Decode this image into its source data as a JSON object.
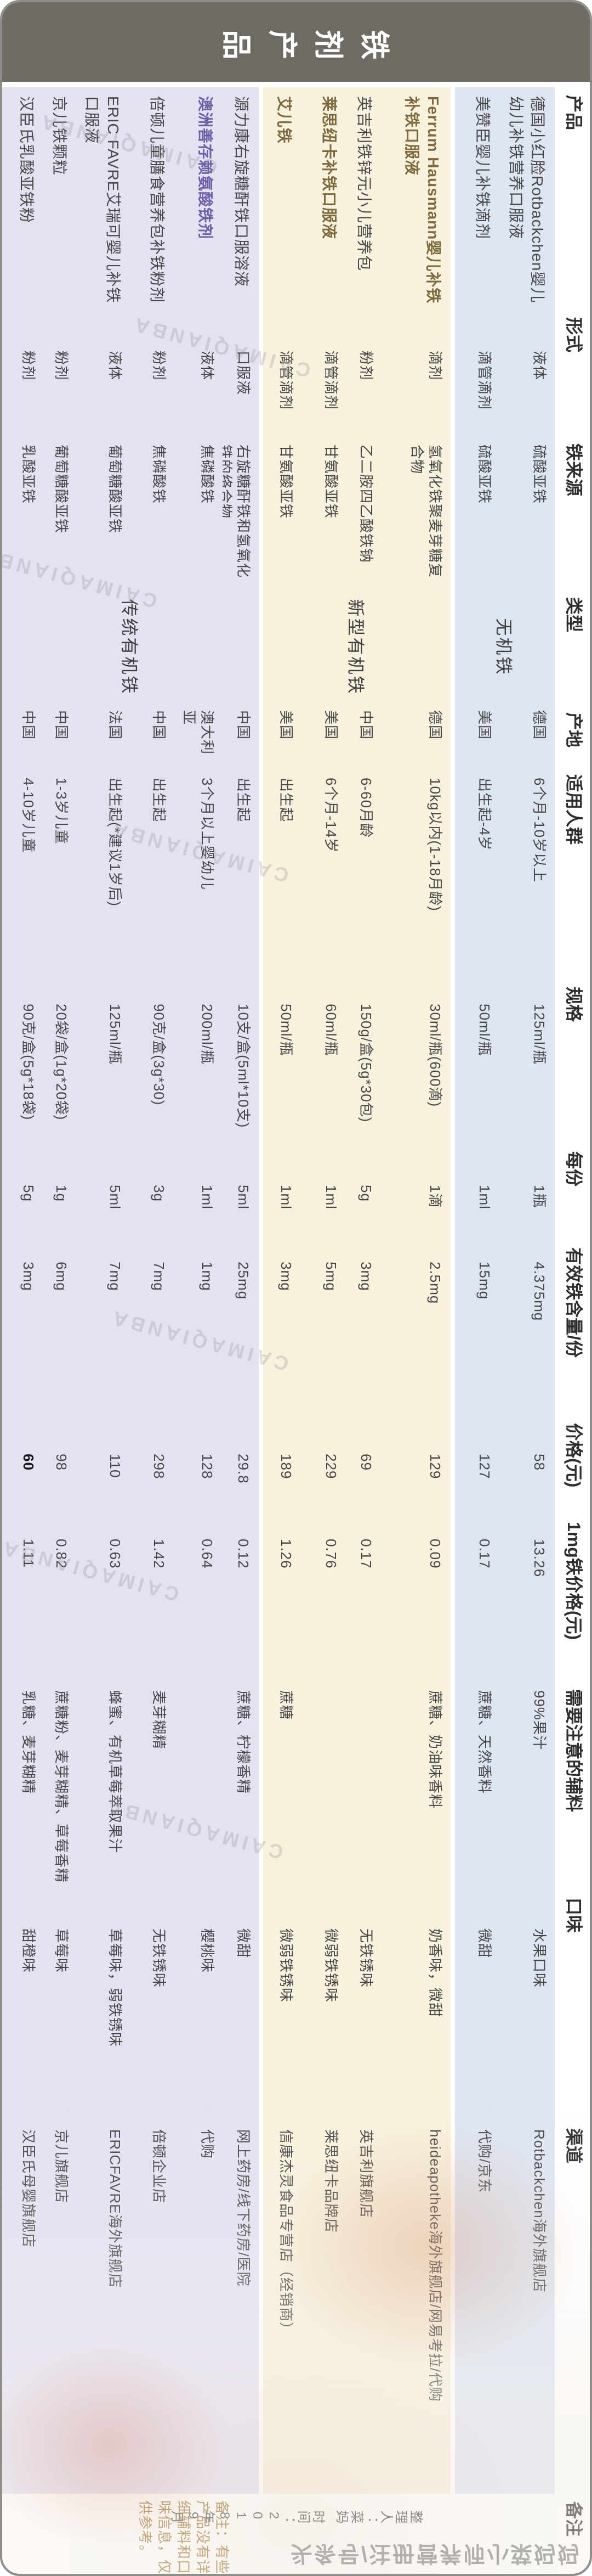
{
  "title": "铁剂产品",
  "watermark_text": "CAIMAQIANBA",
  "byline": "头条号/注册营养师小菜妈妈",
  "headers": {
    "product": "产品",
    "form": "形式",
    "source": "铁来源",
    "type": "类型",
    "origin": "产地",
    "audience": "适用人群",
    "spec": "规格",
    "serving": "每份",
    "iron": "有效铁含量/份",
    "price": "价格(元)",
    "price_per_mg": "1mg铁价格(元)",
    "additives": "需要注意的辅料",
    "flavor": "口味",
    "channel": "渠道",
    "note": "备注"
  },
  "type_groups": [
    {
      "id": "blue",
      "label": "无机铁"
    },
    {
      "id": "cream",
      "label": "新型有机铁"
    },
    {
      "id": "lavender",
      "label": "传统有机铁"
    }
  ],
  "colors": {
    "title_bg": "#6e6a64",
    "blue": "#dde5f2",
    "cream": "#f7f1dd",
    "lavender": "#e4e1f3",
    "accent_brown": "#7d6a3f",
    "accent_purple": "#6f5fa8",
    "note_text": "#9c7c3c"
  },
  "note": {
    "text": "备注：有些产品没有详细辅料和口味信息，仅供参考。",
    "editor": "整理人：菜妈",
    "date": "时间：2018年9月"
  },
  "products": [
    {
      "name": "德国小红脸Rotbackchen婴儿幼儿补铁营养口服液",
      "group": "blue",
      "highlight": null,
      "form": "液体",
      "source": "硫酸亚铁",
      "origin": "德国",
      "audience": "6个月-10岁以上",
      "spec": "125ml/瓶",
      "serving": "1瓶",
      "iron": "4.375mg",
      "price": "58",
      "price_bold": false,
      "price_per_mg": "13.26",
      "additives": "99%果汁",
      "flavor": "水果口味",
      "channel": "Rotbackchen海外旗舰店"
    },
    {
      "name": "美赞臣婴儿补铁滴剂",
      "group": "blue",
      "highlight": null,
      "form": "滴管滴剂",
      "source": "硫酸亚铁",
      "origin": "美国",
      "audience": "出生起-4岁",
      "spec": "50ml/瓶",
      "serving": "1ml",
      "iron": "15mg",
      "price": "127",
      "price_bold": false,
      "price_per_mg": "0.17",
      "additives": "蔗糖、天然香料",
      "flavor": "微甜",
      "channel": "代购/京东"
    },
    {
      "name": "Ferrum Hausmann婴儿补铁补铁口服液",
      "group": "cream",
      "highlight": "brown",
      "form": "滴剂",
      "source": "氢氧化铁聚麦芽糖复合物",
      "origin": "德国",
      "audience": "10kg以内(1-18月龄)",
      "spec": "30ml/瓶(600滴)",
      "serving": "1滴",
      "iron": "2.5mg",
      "price": "129",
      "price_bold": false,
      "price_per_mg": "0.09",
      "additives": "蔗糖、奶油味香料",
      "flavor": "奶香味，微甜",
      "channel": "heideapotheke海外旗舰店/网易考拉/代购"
    },
    {
      "name": "英吉利铁锌元小儿营养包",
      "group": "cream",
      "highlight": null,
      "form": "粉剂",
      "source": "乙二胺四乙酸铁钠",
      "origin": "中国",
      "audience": "6-60月龄",
      "spec": "150g/盒(5g*30包)",
      "serving": "5g",
      "iron": "3mg",
      "price": "69",
      "price_bold": false,
      "price_per_mg": "0.17",
      "additives": "",
      "flavor": "无铁锈味",
      "channel": "英吉利旗舰店"
    },
    {
      "name": "莱思纽卡补铁口服液",
      "group": "cream",
      "highlight": "brown",
      "form": "滴管滴剂",
      "source": "甘氨酸亚铁",
      "origin": "美国",
      "audience": "6个月-14岁",
      "spec": "60ml/瓶",
      "serving": "1ml",
      "iron": "5mg",
      "price": "229",
      "price_bold": false,
      "price_per_mg": "0.76",
      "additives": "",
      "flavor": "微弱铁锈味",
      "channel": "莱思纽卡品牌店"
    },
    {
      "name": "艾儿铁",
      "group": "cream",
      "highlight": "brown",
      "form": "滴管滴剂",
      "source": "甘氨酸亚铁",
      "origin": "美国",
      "audience": "出生起",
      "spec": "50ml/瓶",
      "serving": "1ml",
      "iron": "3mg",
      "price": "189",
      "price_bold": false,
      "price_per_mg": "1.26",
      "additives": "蔗糖",
      "flavor": "微弱铁锈味",
      "channel": "信康杰灵食品专营店（经销商）"
    },
    {
      "name": "源力康右旋糖酐铁口服溶液",
      "group": "lavender",
      "highlight": null,
      "form": "口服液",
      "source": "右旋糖酐铁和氢氧化铁的络合物",
      "origin": "中国",
      "audience": "出生起",
      "spec": "10支/盒(5ml*10支)",
      "serving": "5ml",
      "iron": "25mg",
      "price": "29.8",
      "price_bold": false,
      "price_per_mg": "0.12",
      "additives": "蔗糖、柠檬香精",
      "flavor": "微甜",
      "channel": "网上药房/线下药房/医院"
    },
    {
      "name": "澳洲善存赖氨酸铁剂",
      "group": "lavender",
      "highlight": "purple",
      "form": "液体",
      "source": "焦磷酸铁",
      "origin": "澳大利亚",
      "audience": "3个月以上婴幼儿",
      "spec": "200ml/瓶",
      "serving": "1ml",
      "iron": "1mg",
      "price": "128",
      "price_bold": false,
      "price_per_mg": "0.64",
      "additives": "",
      "flavor": "樱桃味",
      "channel": "代购"
    },
    {
      "name": "倍顿儿童膳食营养包补铁粉剂",
      "group": "lavender",
      "highlight": null,
      "form": "粉剂",
      "source": "焦磷酸铁",
      "origin": "中国",
      "audience": "出生起",
      "spec": "90克/盒(3g*30)",
      "serving": "3g",
      "iron": "7mg",
      "price": "298",
      "price_bold": false,
      "price_per_mg": "1.42",
      "additives": "麦芽糊精",
      "flavor": "无铁锈味",
      "channel": "倍顿企业店"
    },
    {
      "name": "ERIC FAVRE艾瑞可婴儿补铁口服液",
      "group": "lavender",
      "highlight": null,
      "form": "液体",
      "source": "葡萄糖酸亚铁",
      "origin": "法国",
      "audience": "出生起(*建议1岁后)",
      "spec": "125ml/瓶",
      "serving": "5ml",
      "iron": "7mg",
      "price": "110",
      "price_bold": false,
      "price_per_mg": "0.63",
      "additives": "蜂蜜、有机草莓萃取果汁",
      "flavor": "草莓味，弱铁锈味",
      "channel": "ERICFAVRE海外旗舰店"
    },
    {
      "name": "京儿铁颗粒",
      "group": "lavender",
      "highlight": null,
      "form": "粉剂",
      "source": "葡萄糖酸亚铁",
      "origin": "中国",
      "audience": "1-3岁儿童",
      "spec": "20袋/盒(1g*20袋)",
      "serving": "1g",
      "iron": "6mg",
      "price": "98",
      "price_bold": false,
      "price_per_mg": "0.82",
      "additives": "蔗糖粉、麦芽糊精、草莓香精",
      "flavor": "草莓味",
      "channel": "京儿旗舰店"
    },
    {
      "name": "汉臣氏乳酸亚铁粉",
      "group": "lavender",
      "highlight": null,
      "form": "粉剂",
      "source": "乳酸亚铁",
      "origin": "中国",
      "audience": "4-10岁儿童",
      "spec": "90克/盒(5g*18袋)",
      "serving": "5g",
      "iron": "3mg",
      "price": "60",
      "price_bold": true,
      "price_per_mg": "1.11",
      "additives": "乳糖、麦芽糊精",
      "flavor": "甜橙味",
      "channel": "汉臣氏母婴旗舰店"
    }
  ],
  "chart_data": {
    "type": "table",
    "title": "铁剂产品",
    "columns": [
      "产品",
      "形式",
      "铁来源",
      "类型",
      "产地",
      "适用人群",
      "规格",
      "每份",
      "有效铁含量/份",
      "价格(元)",
      "1mg铁价格(元)",
      "需要注意的辅料",
      "口味",
      "渠道",
      "备注"
    ],
    "rows": [
      [
        "德国小红脸Rotbackchen婴儿幼儿补铁营养口服液",
        "液体",
        "硫酸亚铁",
        "无机铁",
        "德国",
        "6个月-10岁以上",
        "125ml/瓶",
        "1瓶",
        "4.375mg",
        "58",
        "13.26",
        "99%果汁",
        "水果口味",
        "Rotbackchen海外旗舰店",
        ""
      ],
      [
        "美赞臣婴儿补铁滴剂",
        "滴管滴剂",
        "硫酸亚铁",
        "无机铁",
        "美国",
        "出生起-4岁",
        "50ml/瓶",
        "1ml",
        "15mg",
        "127",
        "0.17",
        "蔗糖、天然香料",
        "微甜",
        "代购/京东",
        ""
      ],
      [
        "Ferrum Hausmann婴儿补铁补铁口服液",
        "滴剂",
        "氢氧化铁聚麦芽糖复合物",
        "新型有机铁",
        "德国",
        "10kg以内(1-18月龄)",
        "30ml/瓶(600滴)",
        "1滴",
        "2.5mg",
        "129",
        "0.09",
        "蔗糖、奶油味香料",
        "奶香味，微甜",
        "heideapotheke海外旗舰店/网易考拉/代购",
        ""
      ],
      [
        "英吉利铁锌元小儿营养包",
        "粉剂",
        "乙二胺四乙酸铁钠",
        "新型有机铁",
        "中国",
        "6-60月龄",
        "150g/盒(5g*30包)",
        "5g",
        "3mg",
        "69",
        "0.17",
        "",
        "无铁锈味",
        "英吉利旗舰店",
        ""
      ],
      [
        "莱思纽卡补铁口服液",
        "滴管滴剂",
        "甘氨酸亚铁",
        "新型有机铁",
        "美国",
        "6个月-14岁",
        "60ml/瓶",
        "1ml",
        "5mg",
        "229",
        "0.76",
        "",
        "微弱铁锈味",
        "莱思纽卡品牌店",
        ""
      ],
      [
        "艾儿铁",
        "滴管滴剂",
        "甘氨酸亚铁",
        "新型有机铁",
        "美国",
        "出生起",
        "50ml/瓶",
        "1ml",
        "3mg",
        "189",
        "1.26",
        "蔗糖",
        "微弱铁锈味",
        "信康杰灵食品专营店（经销商）",
        ""
      ],
      [
        "源力康右旋糖酐铁口服溶液",
        "口服液",
        "右旋糖酐铁和氢氧化铁的络合物",
        "传统有机铁",
        "中国",
        "出生起",
        "10支/盒(5ml*10支)",
        "5ml",
        "25mg",
        "29.8",
        "0.12",
        "蔗糖、柠檬香精",
        "微甜",
        "网上药房/线下药房/医院",
        ""
      ],
      [
        "澳洲善存赖氨酸铁剂",
        "液体",
        "焦磷酸铁",
        "传统有机铁",
        "澳大利亚",
        "3个月以上婴幼儿",
        "200ml/瓶",
        "1ml",
        "1mg",
        "128",
        "0.64",
        "",
        "樱桃味",
        "代购",
        ""
      ],
      [
        "倍顿儿童膳食营养包补铁粉剂",
        "粉剂",
        "焦磷酸铁",
        "传统有机铁",
        "中国",
        "出生起",
        "90克/盒(3g*30)",
        "3g",
        "7mg",
        "298",
        "1.42",
        "麦芽糊精",
        "无铁锈味",
        "倍顿企业店",
        ""
      ],
      [
        "ERIC FAVRE艾瑞可婴儿补铁口服液",
        "液体",
        "葡萄糖酸亚铁",
        "传统有机铁",
        "法国",
        "出生起(*建议1岁后)",
        "125ml/瓶",
        "5ml",
        "7mg",
        "110",
        "0.63",
        "蜂蜜、有机草莓萃取果汁",
        "草莓味，弱铁锈味",
        "ERICFAVRE海外旗舰店",
        ""
      ],
      [
        "京儿铁颗粒",
        "粉剂",
        "葡萄糖酸亚铁",
        "传统有机铁",
        "中国",
        "1-3岁儿童",
        "20袋/盒(1g*20袋)",
        "1g",
        "6mg",
        "98",
        "0.82",
        "蔗糖粉、麦芽糊精、草莓香精",
        "草莓味",
        "京儿旗舰店",
        ""
      ],
      [
        "汉臣氏乳酸亚铁粉",
        "粉剂",
        "乳酸亚铁",
        "传统有机铁",
        "中国",
        "4-10岁儿童",
        "90克/盒(5g*18袋)",
        "5g",
        "3mg",
        "60",
        "1.11",
        "乳糖、麦芽糊精",
        "甜橙味",
        "汉臣氏母婴旗舰店",
        ""
      ]
    ],
    "notes": [
      "备注：有些产品没有详细辅料和口味信息，仅供参考。",
      "整理人：菜妈",
      "时间：2018年9月"
    ]
  }
}
